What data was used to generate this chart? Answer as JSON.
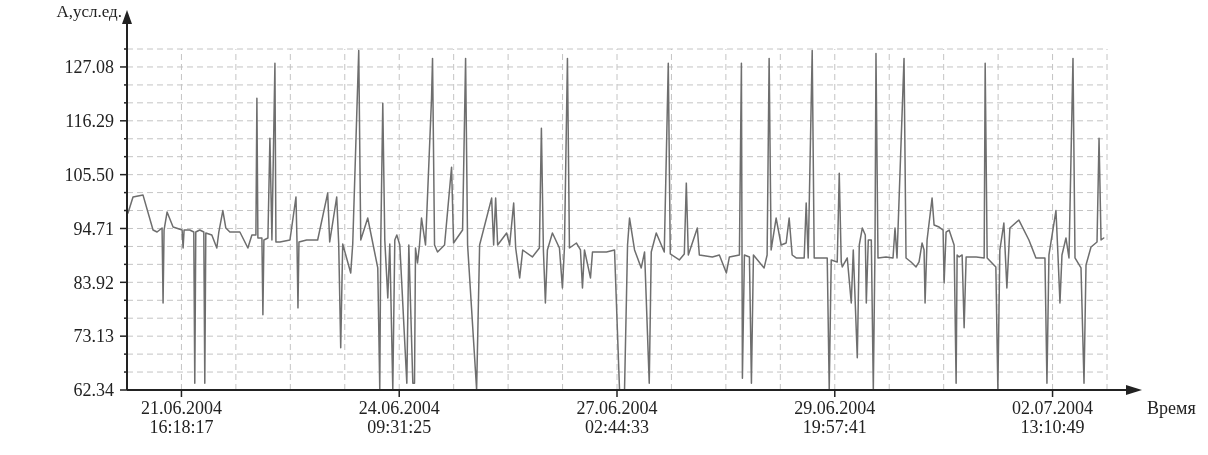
{
  "chart_data": {
    "type": "line",
    "xlabel": "Время",
    "ylabel": "А,усл.ед.",
    "xlim": [
      "2004-06-21T00:00",
      "2004-07-03T05:29:06"
    ],
    "xticks": [
      {
        "value": "2004-06-21T00:00",
        "label": null
      },
      {
        "value": "2004-06-21T16:18:17",
        "label": "21.06.2004\n16:18:17"
      },
      {
        "value": "2004-06-22T08:36:34",
        "label": null
      },
      {
        "value": "2004-06-23T00:54:51",
        "label": null
      },
      {
        "value": "2004-06-23T17:13:08",
        "label": null
      },
      {
        "value": "2004-06-24T09:31:25",
        "label": "24.06.2004\n09:31:25"
      },
      {
        "value": "2004-06-25T01:49:42",
        "label": null
      },
      {
        "value": "2004-06-25T18:07:59",
        "label": null
      },
      {
        "value": "2004-06-26T10:26:16",
        "label": null
      },
      {
        "value": "2004-06-27T02:44:33",
        "label": "27.06.2004\n02:44:33"
      },
      {
        "value": "2004-06-27T19:02:50",
        "label": null
      },
      {
        "value": "2004-06-28T11:21:07",
        "label": null
      },
      {
        "value": "2004-06-29T03:39:24",
        "label": null
      },
      {
        "value": "2004-06-29T19:57:41",
        "label": "29.06.2004\n19:57:41"
      },
      {
        "value": "2004-06-30T12:15:58",
        "label": null
      },
      {
        "value": "2004-07-01T04:34:15",
        "label": null
      },
      {
        "value": "2004-07-01T20:52:32",
        "label": null
      },
      {
        "value": "2004-07-02T13:10:49",
        "label": "02.07.2004\n13:10:49"
      },
      {
        "value": "2004-07-03T05:29:06",
        "label": null
      }
    ],
    "ylim": [
      62.34,
      130.68
    ],
    "yticks": [
      62.34,
      {
        "value": 65.94,
        "label": null
      },
      {
        "value": 69.53,
        "label": null
      },
      73.13,
      {
        "value": 76.73,
        "label": null
      },
      {
        "value": 80.32,
        "label": null
      },
      83.92,
      {
        "value": 87.52,
        "label": null
      },
      {
        "value": 91.11,
        "label": null
      },
      94.71,
      {
        "value": 98.31,
        "label": null
      },
      {
        "value": 101.9,
        "label": null
      },
      {
        "value": 105.5,
        "label": "105.50"
      },
      {
        "value": 109.1,
        "label": null
      },
      {
        "value": 112.69,
        "label": null
      },
      116.29,
      {
        "value": 119.89,
        "label": null
      },
      {
        "value": 123.48,
        "label": null
      },
      127.08,
      {
        "value": 130.68,
        "label": null
      }
    ],
    "grid": true,
    "x": [
      "2004-06-21T00:18",
      "2004-06-21T01:48",
      "2004-06-21T04:48",
      "2004-06-21T07:48",
      "2004-06-21T09:00",
      "2004-06-21T10:30",
      "2004-06-21T10:48",
      "2004-06-21T11:06",
      "2004-06-21T12:00",
      "2004-06-21T13:48",
      "2004-06-21T16:30",
      "2004-06-21T16:48",
      "2004-06-21T17:06",
      "2004-06-21T18:48",
      "2004-06-21T20:00",
      "2004-06-21T20:18",
      "2004-06-21T20:36",
      "2004-06-21T21:48",
      "2004-06-21T23:00",
      "2004-06-21T23:18",
      "2004-06-21T23:36",
      "2004-06-22T01:24",
      "2004-06-22T02:54",
      "2004-06-22T03:30",
      "2004-06-22T04:42",
      "2004-06-22T05:36",
      "2004-06-22T06:48",
      "2004-06-22T09:48",
      "2004-06-22T12:12",
      "2004-06-22T13:24",
      "2004-06-22T14:36",
      "2004-06-22T14:54",
      "2004-06-22T15:12",
      "2004-06-22T16:24",
      "2004-06-22T16:42",
      "2004-06-22T17:00",
      "2004-06-22T18:12",
      "2004-06-22T18:48",
      "2004-06-22T19:24",
      "2004-06-22T20:18",
      "2004-06-22T20:36",
      "2004-06-22T21:48",
      "2004-06-23T00:48",
      "2004-06-23T02:36",
      "2004-06-23T02:54",
      "2004-06-23T03:12",
      "2004-06-23T03:30",
      "2004-06-23T05:48",
      "2004-06-23T09:06",
      "2004-06-23T12:06",
      "2004-06-23T12:42",
      "2004-06-23T14:48",
      "2004-06-23T15:24",
      "2004-06-23T16:00",
      "2004-06-23T16:36",
      "2004-06-23T19:00",
      "2004-06-23T19:36",
      "2004-06-23T21:24",
      "2004-06-23T22:00",
      "2004-06-24T00:06",
      "2004-06-24T01:18",
      "2004-06-24T03:06",
      "2004-06-24T03:42",
      "2004-06-24T04:00",
      "2004-06-24T04:36",
      "2004-06-24T05:12",
      "2004-06-24T06:06",
      "2004-06-24T06:42",
      "2004-06-24T07:36",
      "2004-06-24T08:12",
      "2004-06-24T08:48",
      "2004-06-24T09:42",
      "2004-06-24T11:48",
      "2004-06-24T12:24",
      "2004-06-24T13:36",
      "2004-06-24T14:06",
      "2004-06-24T14:24",
      "2004-06-24T15:00",
      "2004-06-24T15:36",
      "2004-06-24T16:12",
      "2004-06-24T17:24",
      "2004-06-24T19:12",
      "2004-06-24T19:30",
      "2004-06-24T20:06",
      "2004-06-24T21:00",
      "2004-06-24T23:06",
      "2004-06-25T01:12",
      "2004-06-25T01:48",
      "2004-06-25T04:30",
      "2004-06-25T05:24",
      "2004-06-25T06:00",
      "2004-06-25T08:42",
      "2004-06-25T09:36",
      "2004-06-25T13:12",
      "2004-06-25T13:48",
      "2004-06-25T14:24",
      "2004-06-25T15:00",
      "2004-06-25T17:42",
      "2004-06-25T18:36",
      "2004-06-25T19:48",
      "2004-06-25T20:24",
      "2004-06-25T21:36",
      "2004-06-25T22:30",
      "2004-06-26T01:24",
      "2004-06-26T03:30",
      "2004-06-26T04:06",
      "2004-06-26T04:42",
      "2004-06-26T05:18",
      "2004-06-26T05:54",
      "2004-06-26T07:24",
      "2004-06-26T09:30",
      "2004-06-26T10:24",
      "2004-06-26T11:00",
      "2004-06-26T11:54",
      "2004-06-26T12:30",
      "2004-06-26T14:36",
      "2004-06-26T15:48",
      "2004-06-26T16:24",
      "2004-06-26T17:00",
      "2004-06-26T18:48",
      "2004-06-26T19:24",
      "2004-06-26T23:36",
      "2004-06-27T02:00",
      "2004-06-27T03:30",
      "2004-06-27T05:00",
      "2004-06-27T05:54",
      "2004-06-27T06:30",
      "2004-06-27T08:00",
      "2004-06-27T10:00",
      "2004-06-27T11:00",
      "2004-06-27T12:24",
      "2004-06-27T13:00",
      "2004-06-27T14:30",
      "2004-06-27T16:54",
      "2004-06-27T18:06",
      "2004-06-27T18:42",
      "2004-06-27T21:24",
      "2004-06-27T22:54",
      "2004-06-27T23:30",
      "2004-06-28T00:06",
      "2004-06-28T02:48",
      "2004-06-28T03:24",
      "2004-06-28T07:18",
      "2004-06-28T09:24",
      "2004-06-28T11:30",
      "2004-06-28T12:24",
      "2004-06-28T15:24",
      "2004-06-28T16:00",
      "2004-06-28T16:18",
      "2004-06-28T16:54",
      "2004-06-28T18:24",
      "2004-06-28T19:00",
      "2004-06-28T19:36",
      "2004-06-28T22:48",
      "2004-06-28T23:42",
      "2004-06-29T00:18",
      "2004-06-29T00:54",
      "2004-06-29T02:24",
      "2004-06-29T03:54",
      "2004-06-29T05:24",
      "2004-06-29T06:18",
      "2004-06-29T07:12",
      "2004-06-29T08:24",
      "2004-06-29T10:48",
      "2004-06-29T11:24",
      "2004-06-29T12:00",
      "2004-06-29T13:12",
      "2004-06-29T13:48",
      "2004-06-29T16:12",
      "2004-06-29T17:42",
      "2004-06-29T18:18",
      "2004-06-29T18:54",
      "2004-06-29T20:42",
      "2004-06-29T21:18",
      "2004-06-29T21:54",
      "2004-06-29T22:12",
      "2004-06-29T23:42",
      "2004-06-30T00:54",
      "2004-06-30T01:30",
      "2004-06-30T02:42",
      "2004-06-30T03:18",
      "2004-06-30T04:12",
      "2004-06-30T05:06",
      "2004-06-30T05:24",
      "2004-06-30T06:00",
      "2004-06-30T06:54",
      "2004-06-30T07:30",
      "2004-06-30T08:00",
      "2004-06-30T08:18",
      "2004-06-30T08:54",
      "2004-06-30T11:18",
      "2004-06-30T13:24",
      "2004-06-30T14:00",
      "2004-06-30T14:36",
      "2004-06-30T16:42",
      "2004-06-30T17:18",
      "2004-06-30T18:48",
      "2004-06-30T20:18",
      "2004-06-30T21:12",
      "2004-06-30T22:06",
      "2004-06-30T22:42",
      "2004-06-30T23:00",
      "2004-06-30T23:36",
      "2004-07-01T01:06",
      "2004-07-01T01:42",
      "2004-07-01T03:12",
      "2004-07-01T04:24",
      "2004-07-01T04:42",
      "2004-07-01T05:18",
      "2004-07-01T06:12",
      "2004-07-01T07:42",
      "2004-07-01T08:18",
      "2004-07-01T08:36",
      "2004-07-01T09:12",
      "2004-07-01T10:06",
      "2004-07-01T10:42",
      "2004-07-01T11:18",
      "2004-07-01T14:18",
      "2004-07-01T16:42",
      "2004-07-01T17:00",
      "2004-07-01T17:36",
      "2004-07-01T20:12",
      "2004-07-01T20:48",
      "2004-07-01T21:24",
      "2004-07-01T22:36",
      "2004-07-01T23:30",
      "2004-07-02T00:24",
      "2004-07-02T03:06",
      "2004-07-02T06:06",
      "2004-07-02T08:12",
      "2004-07-02T10:54",
      "2004-07-02T11:30",
      "2004-07-02T12:06",
      "2004-07-02T14:12",
      "2004-07-02T14:48",
      "2004-07-02T15:24",
      "2004-07-02T16:00",
      "2004-07-02T17:12",
      "2004-07-02T18:06",
      "2004-07-02T19:18",
      "2004-07-02T19:54",
      "2004-07-02T21:42",
      "2004-07-02T22:36",
      "2004-07-02T23:12",
      "2004-07-03T00:42",
      "2004-07-03T02:30",
      "2004-07-03T03:06",
      "2004-07-03T03:42",
      "2004-07-03T04:30"
    ],
    "series": [
      {
        "color": "#6e6e6e",
        "values": [
          97.8,
          101.0,
          101.4,
          94.4,
          94.0,
          94.8,
          79.8,
          94.4,
          98.0,
          95.0,
          94.4,
          90.8,
          94.4,
          94.4,
          94.0,
          63.7,
          94.0,
          94.4,
          94.0,
          63.7,
          93.8,
          93.4,
          90.8,
          94.0,
          98.3,
          94.8,
          94.0,
          94.0,
          90.8,
          93.4,
          93.4,
          120.8,
          92.8,
          92.8,
          77.4,
          92.4,
          92.8,
          112.8,
          92.4,
          127.8,
          92.0,
          92.0,
          92.4,
          101.0,
          92.4,
          78.8,
          92.0,
          92.4,
          92.4,
          101.8,
          92.0,
          101.0,
          91.6,
          70.8,
          91.6,
          85.8,
          91.6,
          130.4,
          92.4,
          96.8,
          92.8,
          86.8,
          62.4,
          92.4,
          119.8,
          92.4,
          80.8,
          91.6,
          62.4,
          92.4,
          93.4,
          91.4,
          63.7,
          91.4,
          63.7,
          63.7,
          90.8,
          87.8,
          91.4,
          96.8,
          91.4,
          120.8,
          128.8,
          91.4,
          90.0,
          91.4,
          107.0,
          91.8,
          94.4,
          128.8,
          91.4,
          62.4,
          91.4,
          100.8,
          91.4,
          100.8,
          91.4,
          93.8,
          91.4,
          99.8,
          90.8,
          84.8,
          90.4,
          89.0,
          90.8,
          114.8,
          90.4,
          79.8,
          90.4,
          93.8,
          90.8,
          82.8,
          90.8,
          128.8,
          90.8,
          91.8,
          90.4,
          82.8,
          90.4,
          84.8,
          90.0,
          90.0,
          90.4,
          62.4,
          62.4,
          91.4,
          96.8,
          90.4,
          86.8,
          90.0,
          63.7,
          90.0,
          93.8,
          90.0,
          127.8,
          89.6,
          88.4,
          89.6,
          103.8,
          89.4,
          94.8,
          89.4,
          89.0,
          89.4,
          85.8,
          89.0,
          89.4,
          127.8,
          64.7,
          89.4,
          89.0,
          63.7,
          89.4,
          86.8,
          89.4,
          128.8,
          90.4,
          96.8,
          91.4,
          91.8,
          96.8,
          89.4,
          88.8,
          88.8,
          99.8,
          88.8,
          130.4,
          88.8,
          88.8,
          88.8,
          62.4,
          88.4,
          88.0,
          105.8,
          88.0,
          87.0,
          88.8,
          79.8,
          90.4,
          68.8,
          91.4,
          94.8,
          93.4,
          79.8,
          92.4,
          92.4,
          62.4,
          90.4,
          129.8,
          88.8,
          89.0,
          88.8,
          94.8,
          88.8,
          128.8,
          88.8,
          88.0,
          87.0,
          88.0,
          91.8,
          90.4,
          79.8,
          92.4,
          100.8,
          95.4,
          95.0,
          94.4,
          83.8,
          94.0,
          94.4,
          91.4,
          63.7,
          89.4,
          89.0,
          89.4,
          74.8,
          89.0,
          89.0,
          88.8,
          127.8,
          88.8,
          87.0,
          62.4,
          90.4,
          95.8,
          82.8,
          94.8,
          96.4,
          92.4,
          88.8,
          88.8,
          63.7,
          89.4,
          98.3,
          89.4,
          79.8,
          89.4,
          92.8,
          88.8,
          128.8,
          88.8,
          86.8,
          63.7,
          87.4,
          91.0,
          92.0,
          112.8,
          92.4,
          92.8
        ]
      }
    ]
  }
}
